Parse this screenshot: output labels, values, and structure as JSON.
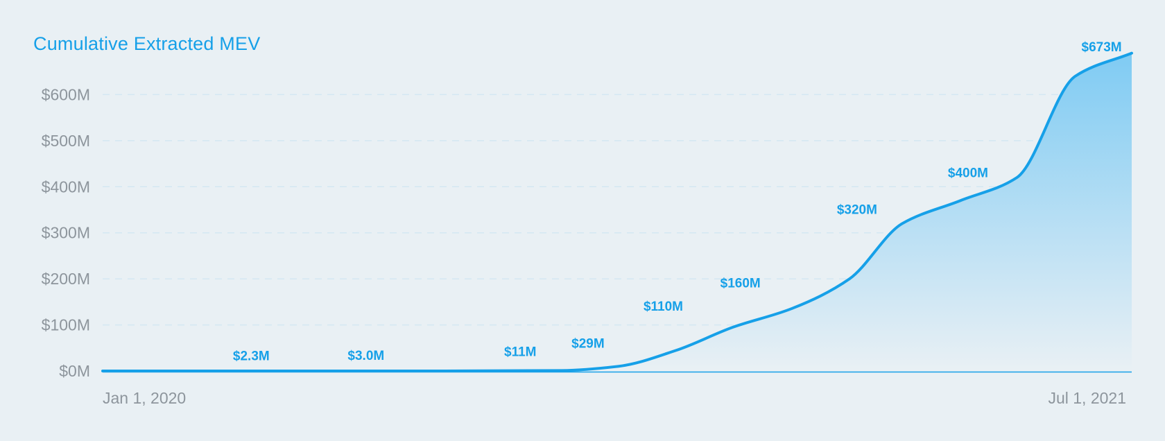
{
  "chart_data": {
    "type": "area",
    "title": "Cumulative Extracted MEV",
    "xlabel": "",
    "ylabel": "",
    "x_tick_labels": [
      "Jan 1, 2020",
      "Jul 1, 2021"
    ],
    "x_range": [
      "2020-01-01",
      "2021-07-01"
    ],
    "y_tick_labels": [
      "$0M",
      "$100M",
      "$200M",
      "$300M",
      "$400M",
      "$500M",
      "$600M"
    ],
    "y_ticks": [
      0,
      100,
      200,
      300,
      400,
      500,
      600
    ],
    "ylim": [
      0,
      700
    ],
    "grid": true,
    "legend": "none",
    "series": [
      {
        "x": [
          "2020-01-01",
          "2020-04-01",
          "2020-07-01",
          "2020-09-01",
          "2020-10-01",
          "2020-11-01",
          "2020-12-01",
          "2021-01-01",
          "2021-02-01",
          "2021-03-01",
          "2021-04-01",
          "2021-05-01",
          "2021-06-01",
          "2021-07-01"
        ],
        "values": [
          0,
          0,
          0,
          1,
          10,
          45,
          95,
          135,
          200,
          320,
          370,
          420,
          640,
          690
        ]
      }
    ],
    "annotations": [
      {
        "x": "2020-03-20",
        "value": 2.3,
        "label": "$2.3M"
      },
      {
        "x": "2020-05-20",
        "value": 3.0,
        "label": "$3.0M"
      },
      {
        "x": "2020-08-10",
        "value": 11,
        "label": "$11M"
      },
      {
        "x": "2020-09-15",
        "value": 29,
        "label": "$29M"
      },
      {
        "x": "2020-10-25",
        "value": 110,
        "label": "$110M"
      },
      {
        "x": "2020-12-05",
        "value": 160,
        "label": "$160M"
      },
      {
        "x": "2021-02-05",
        "value": 320,
        "label": "$320M"
      },
      {
        "x": "2021-04-05",
        "value": 400,
        "label": "$400M"
      },
      {
        "x": "2021-06-15",
        "value": 673,
        "label": "$673M"
      }
    ],
    "colors": {
      "line": "#16a0e8",
      "fill": "#7fcbf3",
      "grid": "#d4e7f2",
      "ticks": "#8d959c",
      "title": "#16a0e8",
      "background": "#e9f0f4"
    }
  }
}
